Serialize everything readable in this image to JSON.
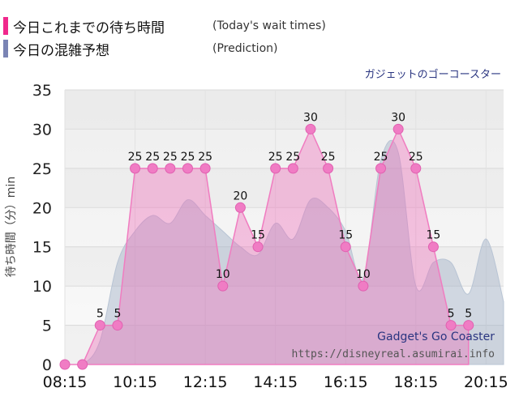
{
  "legend": {
    "actual_label": "今日これまでの待ち時間",
    "actual_sub": "(Today's wait times)",
    "actual_color": "#f0288c",
    "prediction_label": "今日の混雑予想",
    "prediction_sub": "(Prediction)",
    "prediction_color": "#7a84b4"
  },
  "chart_data": {
    "type": "area",
    "title": "ガジェットのゴーコースター",
    "ylabel": "待ち時間（分）min",
    "ylim": [
      0,
      35
    ],
    "yticks": [
      "0",
      "5",
      "10",
      "15",
      "20",
      "25",
      "30",
      "35"
    ],
    "xticks": [
      "08:15",
      "10:15",
      "12:15",
      "14:15",
      "16:15",
      "18:15",
      "20:15"
    ],
    "xlim": [
      "08:15",
      "20:45"
    ],
    "grid": true,
    "watermark_title": "Gadget's Go Coaster",
    "watermark_url": "https://disneyreal.asumirai.info",
    "series": [
      {
        "name": "今日これまでの待ち時間",
        "color": "#f0288c",
        "x": [
          "08:15",
          "08:45",
          "09:15",
          "09:45",
          "10:15",
          "10:45",
          "11:15",
          "11:45",
          "12:15",
          "12:45",
          "13:15",
          "13:45",
          "14:15",
          "14:45",
          "15:15",
          "15:45",
          "16:15",
          "16:45",
          "17:15",
          "17:45",
          "18:15",
          "18:45",
          "19:15",
          "19:45"
        ],
        "values": [
          0,
          0,
          5,
          5,
          25,
          25,
          25,
          25,
          25,
          10,
          20,
          15,
          25,
          25,
          30,
          25,
          15,
          10,
          25,
          30,
          25,
          15,
          5,
          5
        ]
      },
      {
        "name": "今日の混雑予想",
        "color": "#a0b0c8",
        "x": [
          "08:15",
          "08:45",
          "09:15",
          "09:45",
          "10:15",
          "10:45",
          "11:15",
          "11:45",
          "12:15",
          "12:45",
          "13:15",
          "13:45",
          "14:15",
          "14:45",
          "15:15",
          "15:45",
          "16:15",
          "16:45",
          "17:15",
          "17:45",
          "18:15",
          "18:45",
          "19:15",
          "19:45",
          "20:15",
          "20:45"
        ],
        "values": [
          0,
          0,
          3,
          13,
          17,
          19,
          18,
          21,
          19,
          17,
          15,
          14,
          18,
          16,
          21,
          20,
          17,
          11,
          26,
          27,
          10,
          13,
          13,
          9,
          16,
          8
        ]
      }
    ]
  }
}
